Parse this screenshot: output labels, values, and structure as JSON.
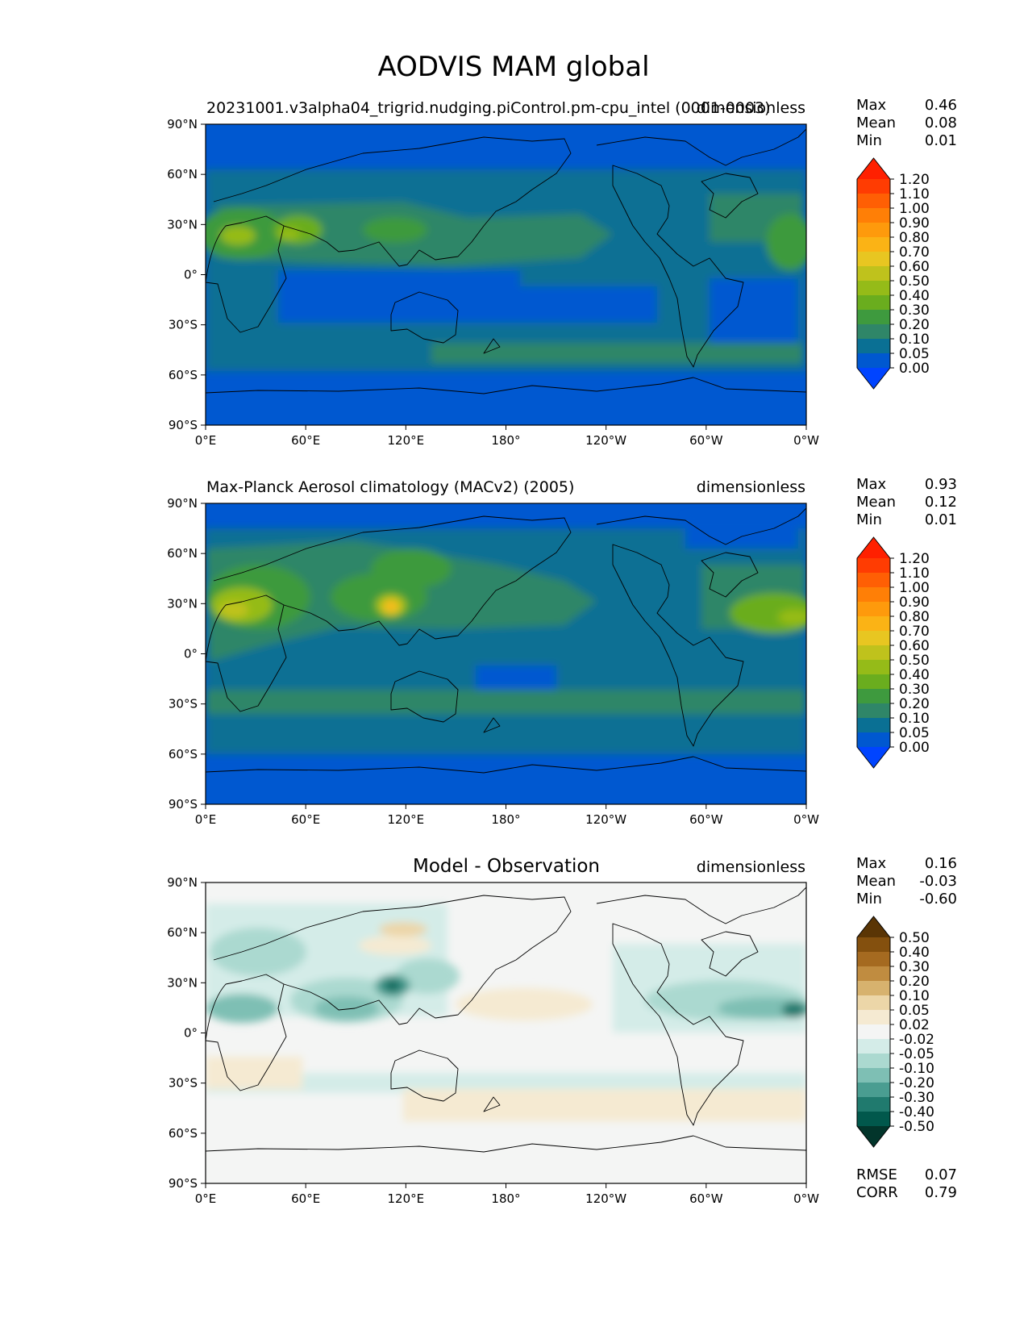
{
  "figure": {
    "title": "AODVIS MAM global",
    "x_ticks": [
      "0°E",
      "60°E",
      "120°E",
      "180°",
      "120°W",
      "60°W",
      "0°W"
    ],
    "y_ticks": [
      "90°N",
      "60°N",
      "30°N",
      "0°",
      "30°S",
      "60°S",
      "90°S"
    ]
  },
  "chart_data": [
    {
      "type": "heatmap",
      "title_left": "20231001.v3alpha04_trigrid.nudging.piControl.pm-cpu_intel (0001-0003)",
      "title_right": "dimensionless",
      "stats": [
        {
          "label": "Max",
          "value": "0.46"
        },
        {
          "label": "Mean",
          "value": "0.08"
        },
        {
          "label": "Min",
          "value": "0.01"
        }
      ],
      "colorbar": {
        "levels": [
          "0.00",
          "0.05",
          "0.10",
          "0.20",
          "0.30",
          "0.40",
          "0.50",
          "0.60",
          "0.70",
          "0.80",
          "0.90",
          "1.00",
          "1.10",
          "1.20"
        ],
        "colors": [
          "#0044ff",
          "#0058d0",
          "#0a7094",
          "#2f8668",
          "#3e9a3e",
          "#6aad1e",
          "#95bb18",
          "#bfc21c",
          "#e8c621",
          "#fbb315",
          "#fe9a0c",
          "#ff7f06",
          "#ff5f04",
          "#ff3c02",
          "#ff2000"
        ],
        "extend": "both"
      },
      "xlim": [
        0,
        360
      ],
      "ylim": [
        -90,
        90
      ]
    },
    {
      "type": "heatmap",
      "title_left": "Max-Planck Aerosol climatology (MACv2) (2005)",
      "title_right": "dimensionless",
      "stats": [
        {
          "label": "Max",
          "value": "0.93"
        },
        {
          "label": "Mean",
          "value": "0.12"
        },
        {
          "label": "Min",
          "value": "0.01"
        }
      ],
      "colorbar": {
        "levels": [
          "0.00",
          "0.05",
          "0.10",
          "0.20",
          "0.30",
          "0.40",
          "0.50",
          "0.60",
          "0.70",
          "0.80",
          "0.90",
          "1.00",
          "1.10",
          "1.20"
        ],
        "colors": [
          "#0044ff",
          "#0058d0",
          "#0a7094",
          "#2f8668",
          "#3e9a3e",
          "#6aad1e",
          "#95bb18",
          "#bfc21c",
          "#e8c621",
          "#fbb315",
          "#fe9a0c",
          "#ff7f06",
          "#ff5f04",
          "#ff3c02",
          "#ff2000"
        ],
        "extend": "both"
      },
      "xlim": [
        0,
        360
      ],
      "ylim": [
        -90,
        90
      ]
    },
    {
      "type": "heatmap",
      "title_center": "Model - Observation",
      "title_right": "dimensionless",
      "stats": [
        {
          "label": "Max",
          "value": "0.16"
        },
        {
          "label": "Mean",
          "value": "-0.03"
        },
        {
          "label": "Min",
          "value": "-0.60"
        }
      ],
      "extra_stats": [
        {
          "label": "RMSE",
          "value": "0.07"
        },
        {
          "label": "CORR",
          "value": "0.79"
        }
      ],
      "colorbar": {
        "levels": [
          "-0.50",
          "-0.40",
          "-0.30",
          "-0.20",
          "-0.10",
          "-0.05",
          "-0.02",
          "0.02",
          "0.05",
          "0.10",
          "0.20",
          "0.30",
          "0.40",
          "0.50"
        ],
        "colors": [
          "#02352b",
          "#01584c",
          "#207a6e",
          "#4a9d91",
          "#7ebfb4",
          "#abd9d0",
          "#d4ece8",
          "#f4f5f4",
          "#f5ead2",
          "#ecd6a8",
          "#d7b26e",
          "#c08c40",
          "#a56a20",
          "#84500e",
          "#5a3505"
        ],
        "extend": "both"
      },
      "xlim": [
        0,
        360
      ],
      "ylim": [
        -90,
        90
      ]
    }
  ]
}
